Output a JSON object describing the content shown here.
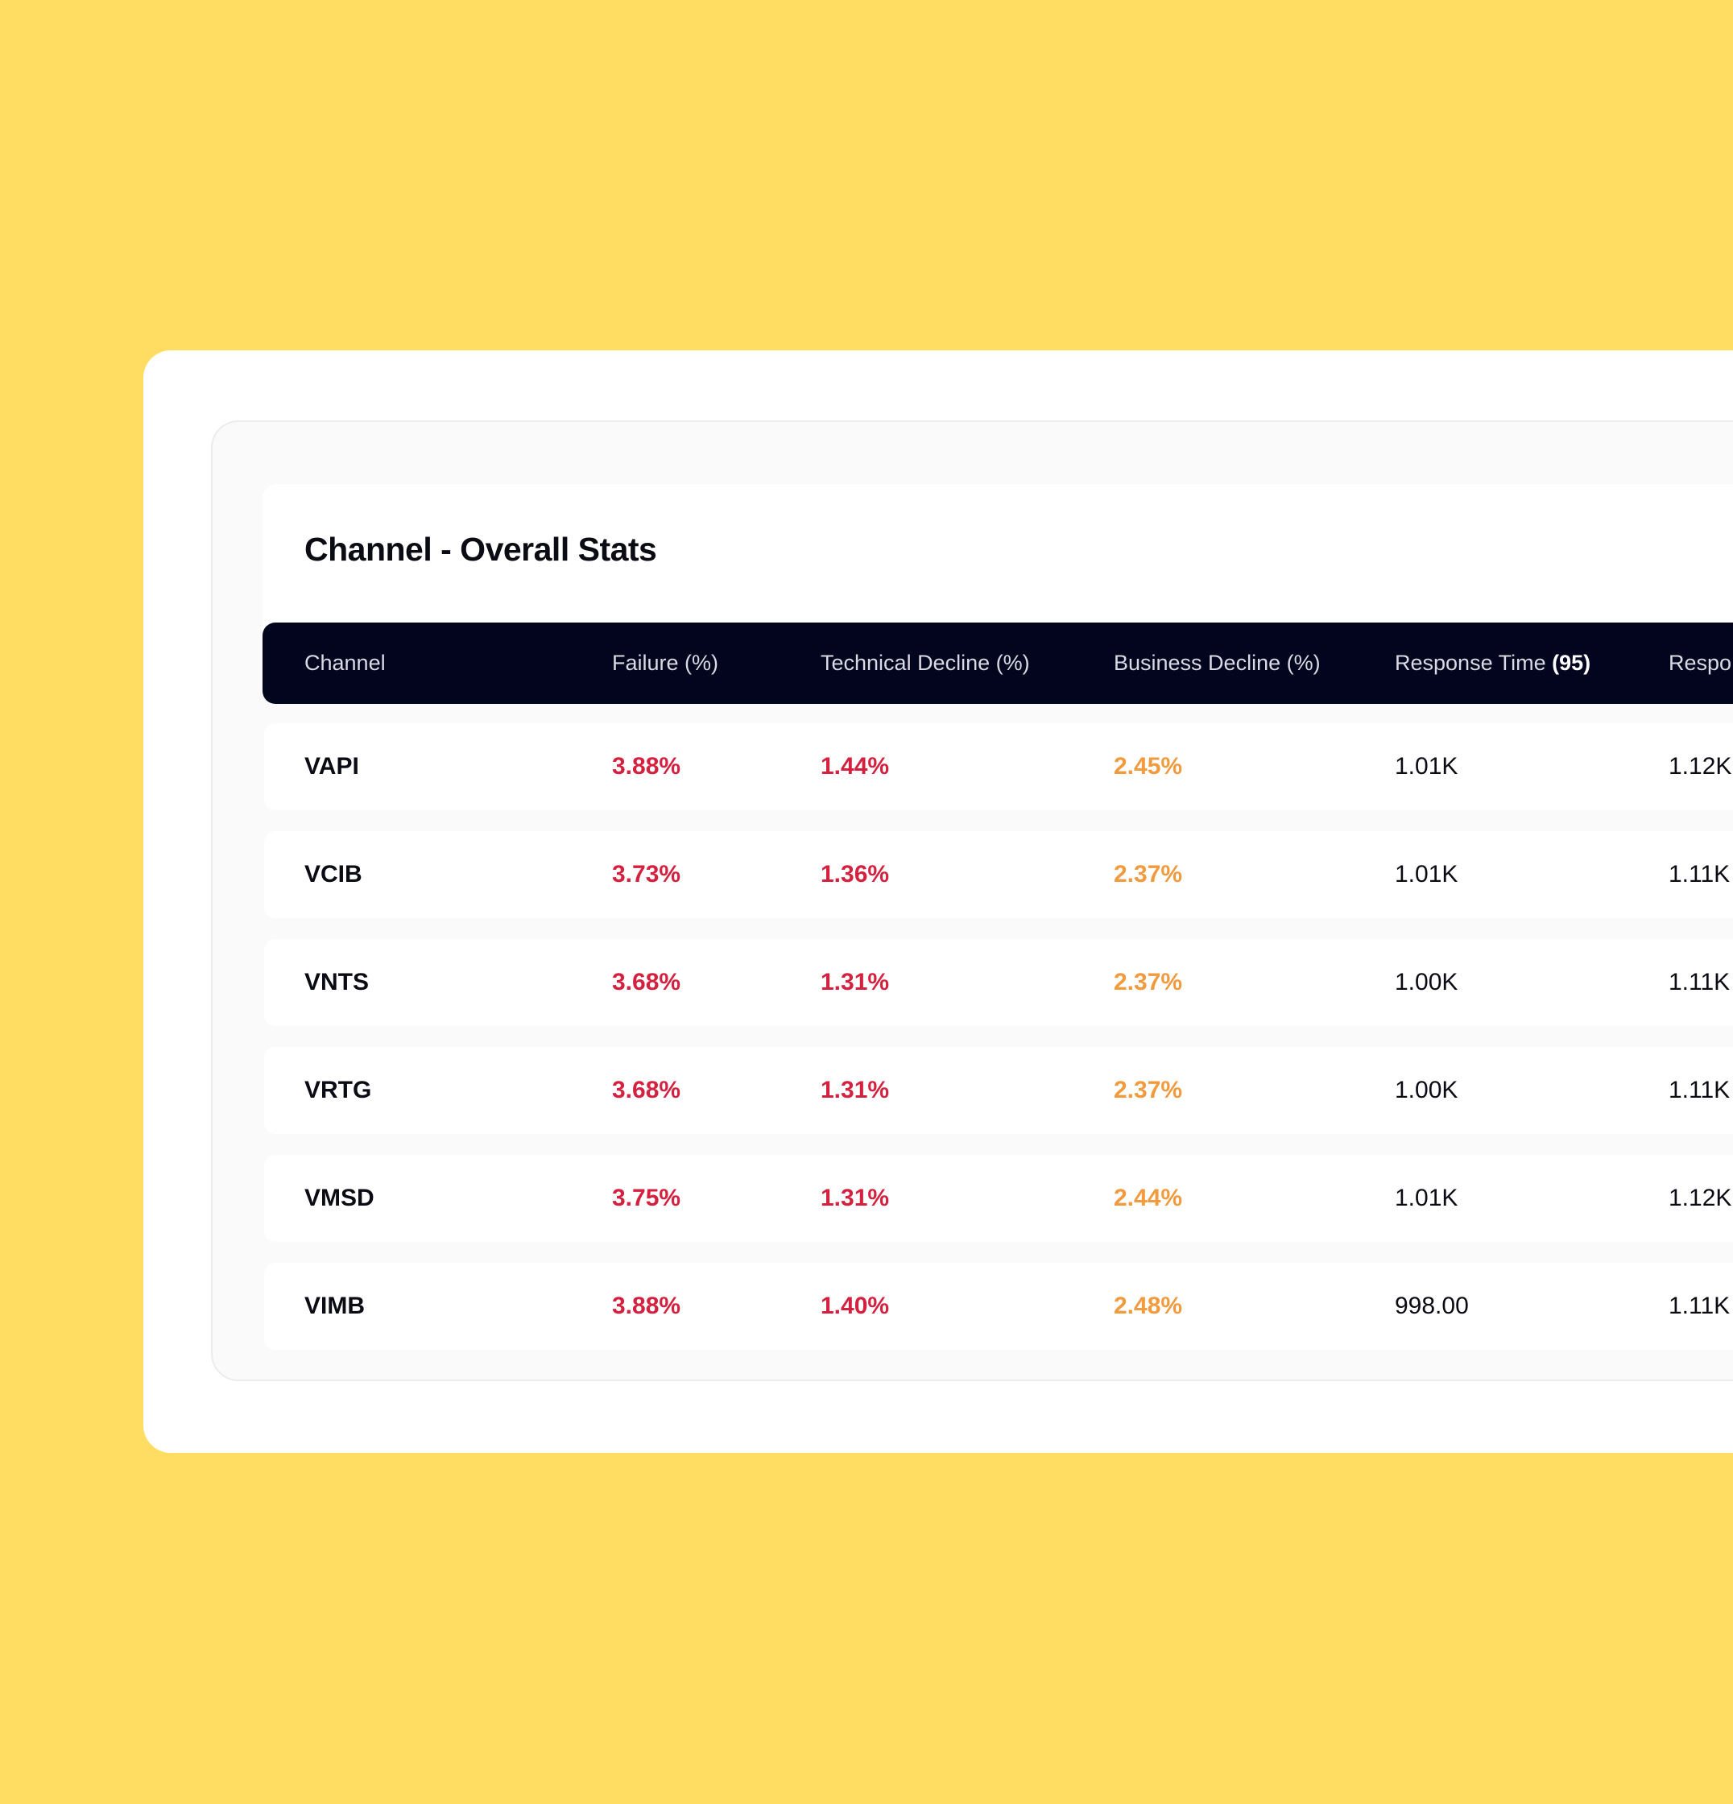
{
  "title": "Channel - Overall Stats",
  "columns": [
    {
      "label": "Channel"
    },
    {
      "label": "Failure (%)"
    },
    {
      "label": "Technical Decline (%)"
    },
    {
      "label": "Business Decline (%)"
    },
    {
      "label": "Response Time",
      "suffix": "(95)"
    },
    {
      "label": "Respo"
    }
  ],
  "rows": [
    {
      "channel": "VAPI",
      "failure": "3.88%",
      "technical_decline": "1.44%",
      "business_decline": "2.45%",
      "response_time_95": "1.01K",
      "response_extra": "1.12K"
    },
    {
      "channel": "VCIB",
      "failure": "3.73%",
      "technical_decline": "1.36%",
      "business_decline": "2.37%",
      "response_time_95": "1.01K",
      "response_extra": "1.11K"
    },
    {
      "channel": "VNTS",
      "failure": "3.68%",
      "technical_decline": "1.31%",
      "business_decline": "2.37%",
      "response_time_95": "1.00K",
      "response_extra": "1.11K"
    },
    {
      "channel": "VRTG",
      "failure": "3.68%",
      "technical_decline": "1.31%",
      "business_decline": "2.37%",
      "response_time_95": "1.00K",
      "response_extra": "1.11K"
    },
    {
      "channel": "VMSD",
      "failure": "3.75%",
      "technical_decline": "1.31%",
      "business_decline": "2.44%",
      "response_time_95": "1.01K",
      "response_extra": "1.12K"
    },
    {
      "channel": "VIMB",
      "failure": "3.88%",
      "technical_decline": "1.40%",
      "business_decline": "2.48%",
      "response_time_95": "998.00",
      "response_extra": "1.11K"
    }
  ],
  "colors": {
    "background": "#FFDD63",
    "header_bg": "#03051F",
    "failure": "#D3213F",
    "business_decline": "#F29A3E"
  }
}
